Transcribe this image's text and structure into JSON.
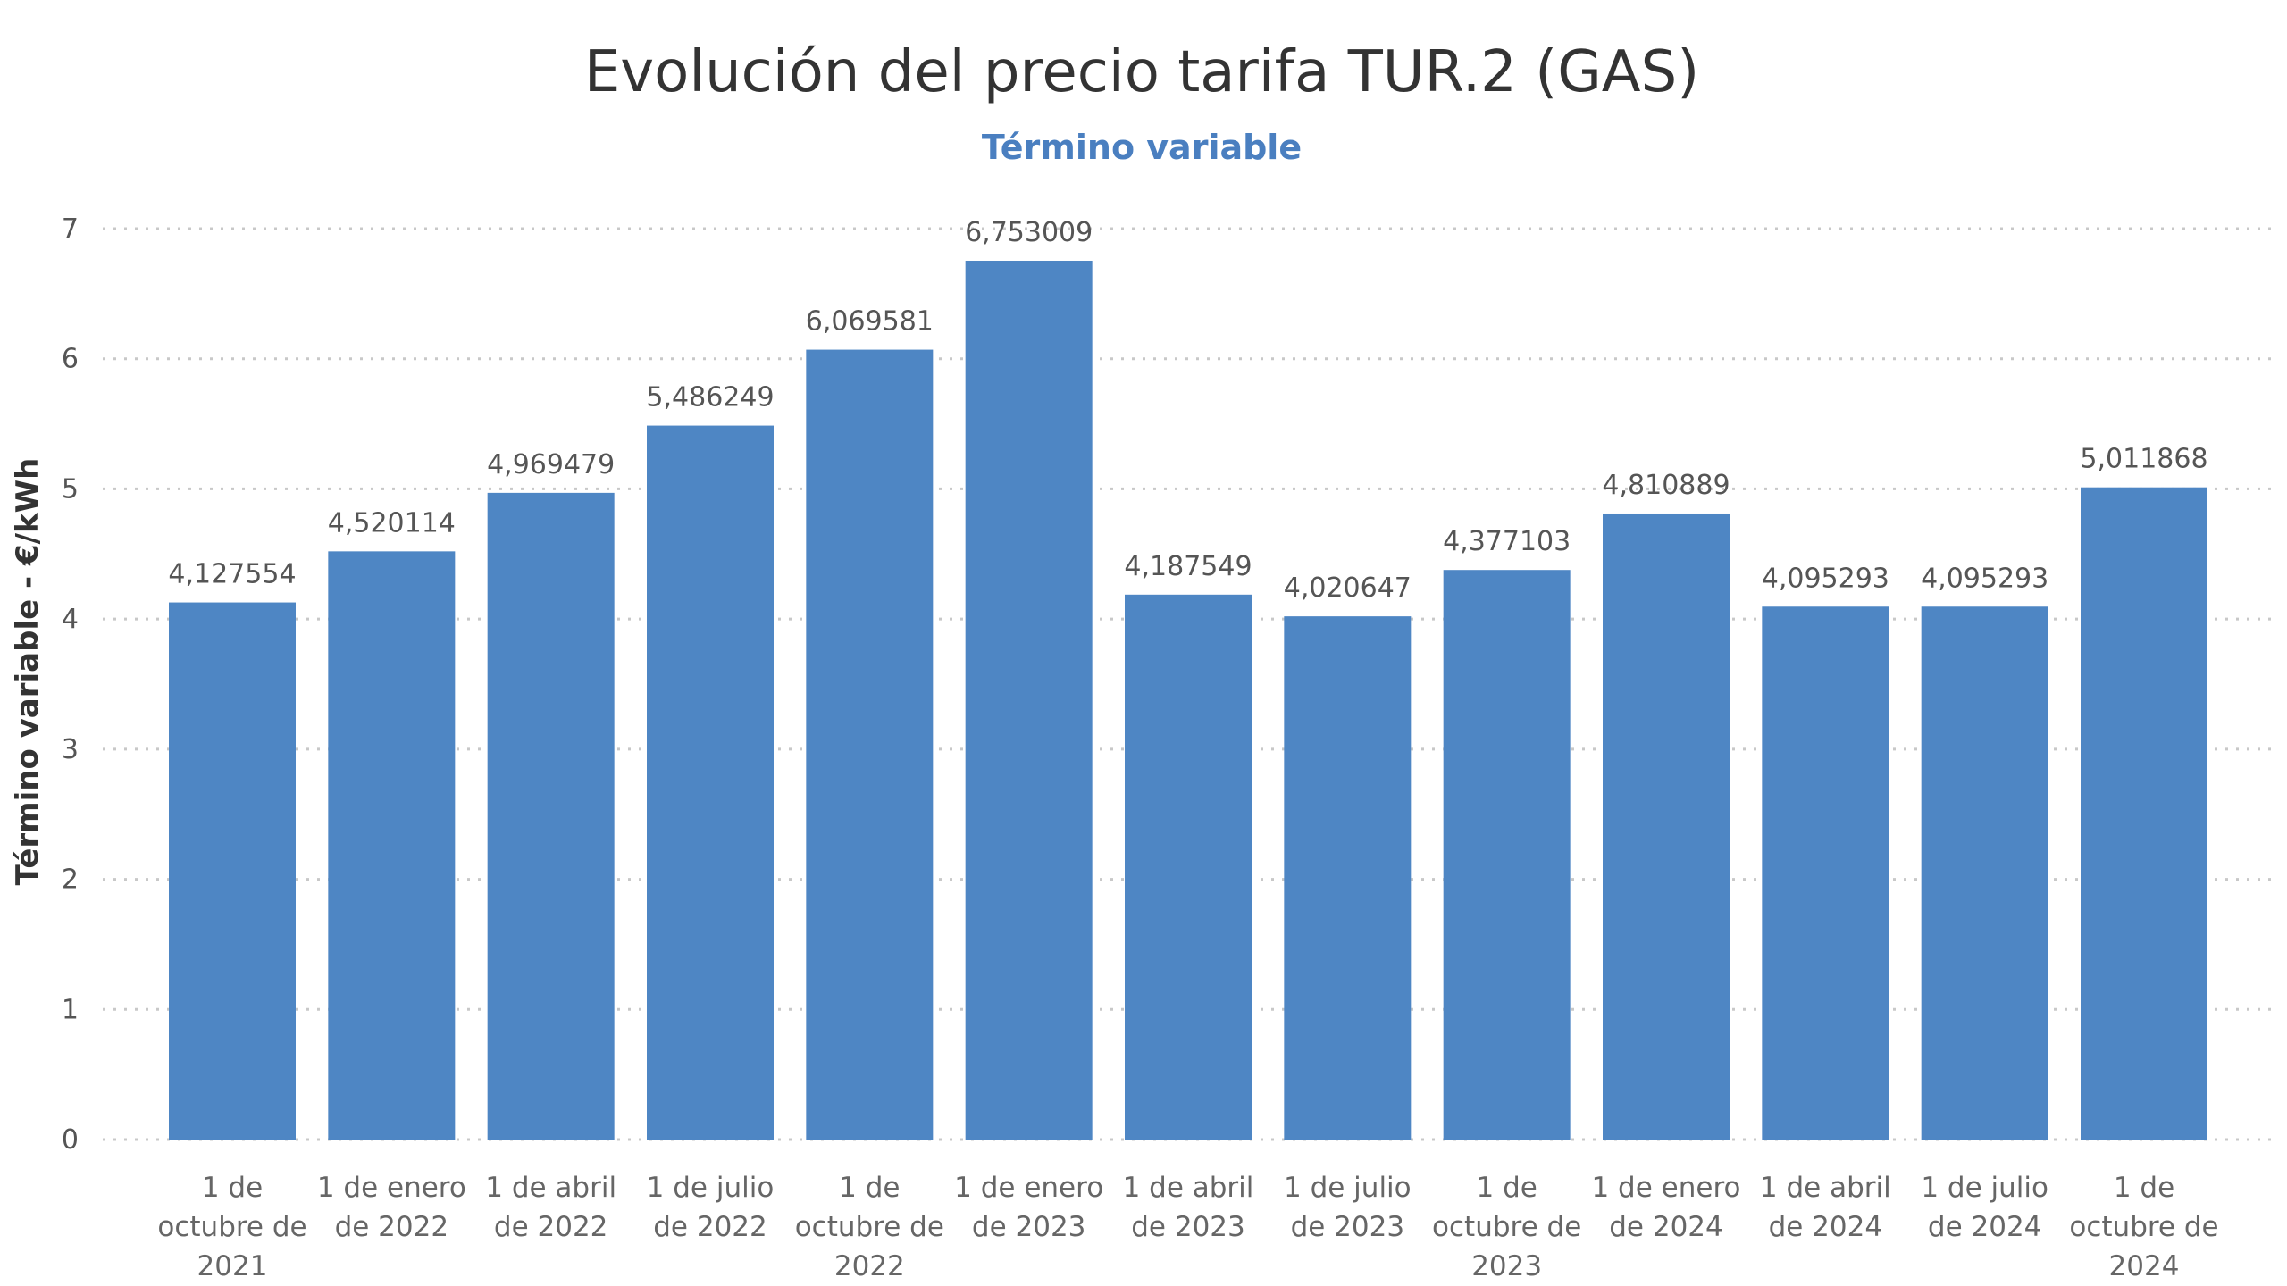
{
  "title": "Evolución del precio tarifa TUR.2 (GAS)",
  "subtitle": "Término variable",
  "colors": {
    "bar": "#4e86c4",
    "subtitle": "#4a7fc0"
  },
  "chart_data": {
    "type": "bar",
    "title": "Evolución del precio tarifa TUR.2 (GAS)",
    "subtitle": "Término variable",
    "xlabel": "",
    "ylabel": "Término variable - €/kWh",
    "ylim": [
      0,
      7
    ],
    "yticks": [
      "0",
      "1",
      "2",
      "3",
      "4",
      "5",
      "6",
      "7"
    ],
    "grid": true,
    "legend": "none",
    "categories": [
      [
        "1 de",
        "octubre de",
        "2021"
      ],
      [
        "1 de enero",
        "de 2022"
      ],
      [
        "1 de abril",
        "de 2022"
      ],
      [
        "1 de julio",
        "de 2022"
      ],
      [
        "1 de",
        "octubre de",
        "2022"
      ],
      [
        "1 de enero",
        "de 2023"
      ],
      [
        "1 de abril",
        "de 2023"
      ],
      [
        "1 de julio",
        "de 2023"
      ],
      [
        "1 de",
        "octubre de",
        "2023"
      ],
      [
        "1 de enero",
        "de 2024"
      ],
      [
        "1 de abril",
        "de 2024"
      ],
      [
        "1 de julio",
        "de 2024"
      ],
      [
        "1 de",
        "octubre de",
        "2024"
      ]
    ],
    "values": [
      4.127554,
      4.520114,
      4.969479,
      5.486249,
      6.069581,
      6.753009,
      4.187549,
      4.020647,
      4.377103,
      4.810889,
      4.095293,
      4.095293,
      5.011868
    ],
    "value_labels": [
      "4,127554",
      "4,520114",
      "4,969479",
      "5,486249",
      "6,069581",
      "6,753009",
      "4,187549",
      "4,020647",
      "4,377103",
      "4,810889",
      "4,095293",
      "4,095293",
      "5,011868"
    ]
  }
}
